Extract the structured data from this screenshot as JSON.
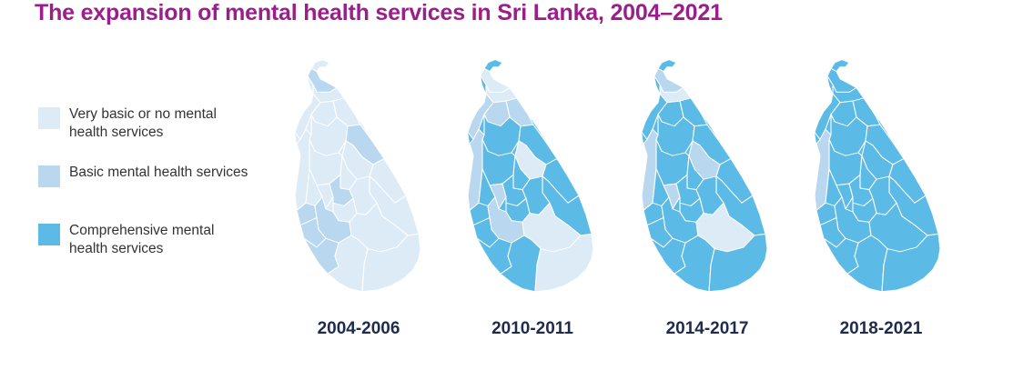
{
  "title": "The expansion of mental health services in Sri Lanka, 2004–2021",
  "colors": {
    "title": "#9b1f8a",
    "none": "#ddebf7",
    "basic": "#b9d7ee",
    "comprehensive": "#5bbbe6",
    "border": "#ffffff",
    "period_label": "#1d2b4f"
  },
  "legend": [
    {
      "key": "none",
      "label": "Very basic or no mental health services",
      "color": "#ddebf7"
    },
    {
      "key": "basic",
      "label": "Basic mental health services",
      "color": "#b9d7ee"
    },
    {
      "key": "comprehensive",
      "label": "Comprehensive mental health services",
      "color": "#5bbbe6"
    }
  ],
  "maps": [
    {
      "period": "2004-2006",
      "default_level": "none",
      "districts": {
        "jaffna": "basic",
        "trincomalee": "basic",
        "kandy": "basic",
        "colombo": "basic",
        "kalutara": "basic",
        "galle": "basic",
        "ratnapura": "basic"
      }
    },
    {
      "period": "2010-2011",
      "default_level": "comprehensive",
      "districts": {
        "north_tip": "comprehensive",
        "jaffna": "none",
        "kilinochchi": "none",
        "mannar": "basic",
        "mullaitivu": "basic",
        "vavuniya": "basic",
        "puttalam": "basic",
        "polonnaruwa": "none",
        "kegalle": "basic",
        "ratnapura": "basic",
        "monaragala": "none",
        "hambantota": "none"
      }
    },
    {
      "period": "2014-2017",
      "default_level": "comprehensive",
      "districts": {
        "jaffna": "basic",
        "kilinochchi": "none",
        "puttalam": "basic",
        "polonnaruwa": "basic",
        "kegalle": "basic",
        "monaragala": "none"
      }
    },
    {
      "period": "2018-2021",
      "default_level": "comprehensive",
      "districts": {
        "puttalam": "basic"
      }
    }
  ]
}
